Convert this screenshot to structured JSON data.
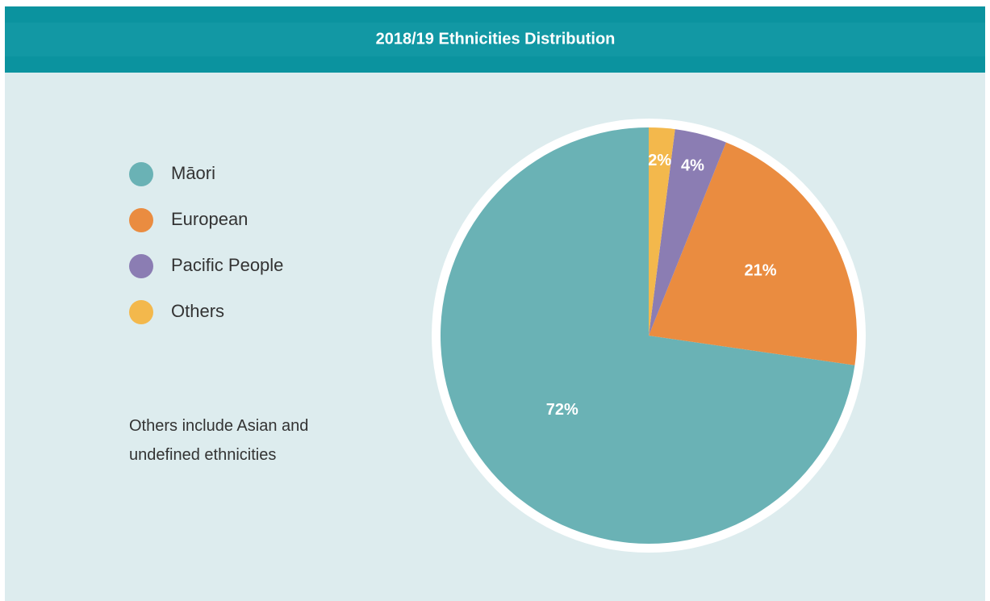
{
  "chart_data": {
    "type": "pie",
    "title": "2018/19 Ethnicities Distribution",
    "categories": [
      "Māori",
      "European",
      "Pacific People",
      "Others"
    ],
    "values": [
      72,
      21,
      4,
      2
    ],
    "value_labels": [
      "72%",
      "21%",
      "4%",
      "2%"
    ],
    "colors": [
      "#6ab2b5",
      "#ea8c40",
      "#8b7db3",
      "#f3b84c"
    ],
    "note": "Others include Asian and undefined ethnicities"
  }
}
